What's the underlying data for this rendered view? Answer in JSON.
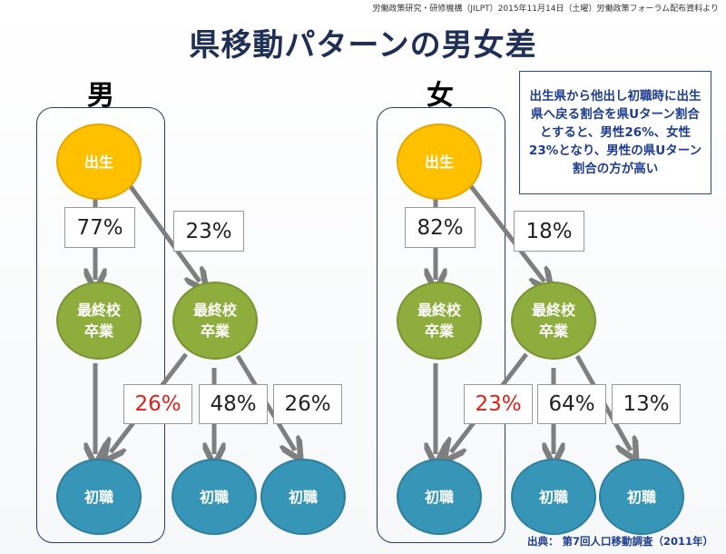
{
  "header": {
    "credit": "労働政策研究・研修機構（JILPT）2015年11月14日（土曜）労働政策フォーラム配布資料より",
    "title": "県移動パターンの男女差"
  },
  "note": "出生県から他出し初職時に出生県へ戻る割合を県Uターン割合とすると、男性26%、女性23%となり、男性の県Uターン割合の方が高い",
  "source": "出典： 第7回人口移動調査（2011年）",
  "labels": {
    "birth": "出生",
    "school_line1": "最終校",
    "school_line2": "卒業",
    "job": "初職"
  },
  "male": {
    "label": "男",
    "stay": "77%",
    "move": "23%",
    "return": "26%",
    "stay2": "48%",
    "other": "26%"
  },
  "female": {
    "label": "女",
    "stay": "82%",
    "move": "18%",
    "return": "23%",
    "stay2": "64%",
    "other": "13%"
  },
  "colors": {
    "birth": "#ffc000",
    "school": "#8fad3c",
    "job": "#3796b8",
    "arrow": "#7f7f7f",
    "highlight": "#e0201a",
    "note_text": "#1f3d8f"
  }
}
